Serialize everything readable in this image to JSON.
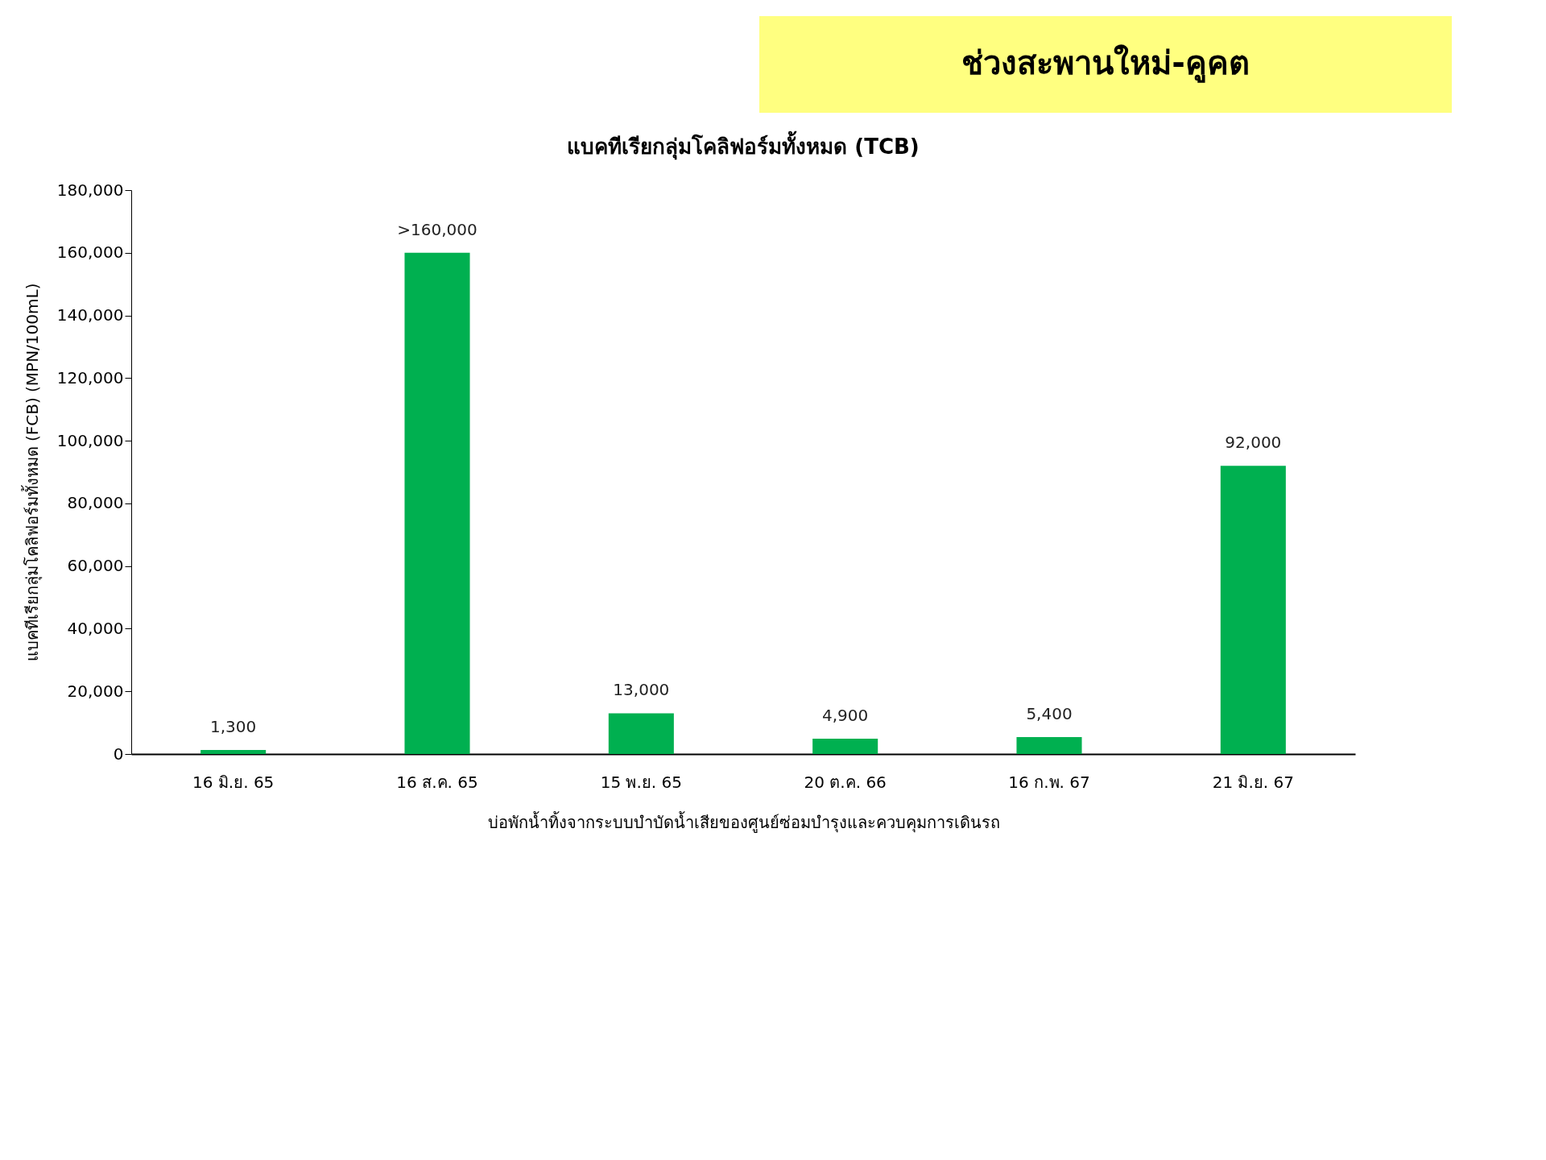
{
  "chart_data": {
    "type": "bar",
    "title": "ช่วงสะพานใหม่-คูคต",
    "subtitle": "แบคทีเรียกลุ่มโคลิฟอร์มทั้งหมด (TCB)",
    "xlabel": "บ่อพักน้ำทิ้งจากระบบบำบัดน้ำเสียของศูนย์ซ่อมบำรุงและควบคุมการเดินรถ",
    "ylabel": "แบคทีเรียกลุ่มโคลิฟอร์มทั้งหมด (FCB) (MPN/100mL)",
    "categories": [
      "16 มิ.ย. 65",
      "16 ส.ค. 65",
      "15 พ.ย. 65",
      "20 ต.ค. 66",
      "16 ก.พ. 67",
      "21 มิ.ย. 67"
    ],
    "values": [
      1300,
      160000,
      13000,
      4900,
      5400,
      92000
    ],
    "value_labels": [
      "1,300",
      ">160,000",
      "13,000",
      "4,900",
      "5,400",
      "92,000"
    ],
    "color": "#00b050",
    "ylim": [
      0,
      180000
    ],
    "yticks": [
      {
        "value": 0,
        "label": "0"
      },
      {
        "value": 20000,
        "label": "20,000"
      },
      {
        "value": 40000,
        "label": "40,000"
      },
      {
        "value": 60000,
        "label": "60,000"
      },
      {
        "value": 80000,
        "label": "80,000"
      },
      {
        "value": 100000,
        "label": "100,000"
      },
      {
        "value": 120000,
        "label": "120,000"
      },
      {
        "value": 140000,
        "label": "140,000"
      },
      {
        "value": 160000,
        "label": "160,000"
      },
      {
        "value": 180000,
        "label": "180,000"
      }
    ],
    "grid": false
  }
}
